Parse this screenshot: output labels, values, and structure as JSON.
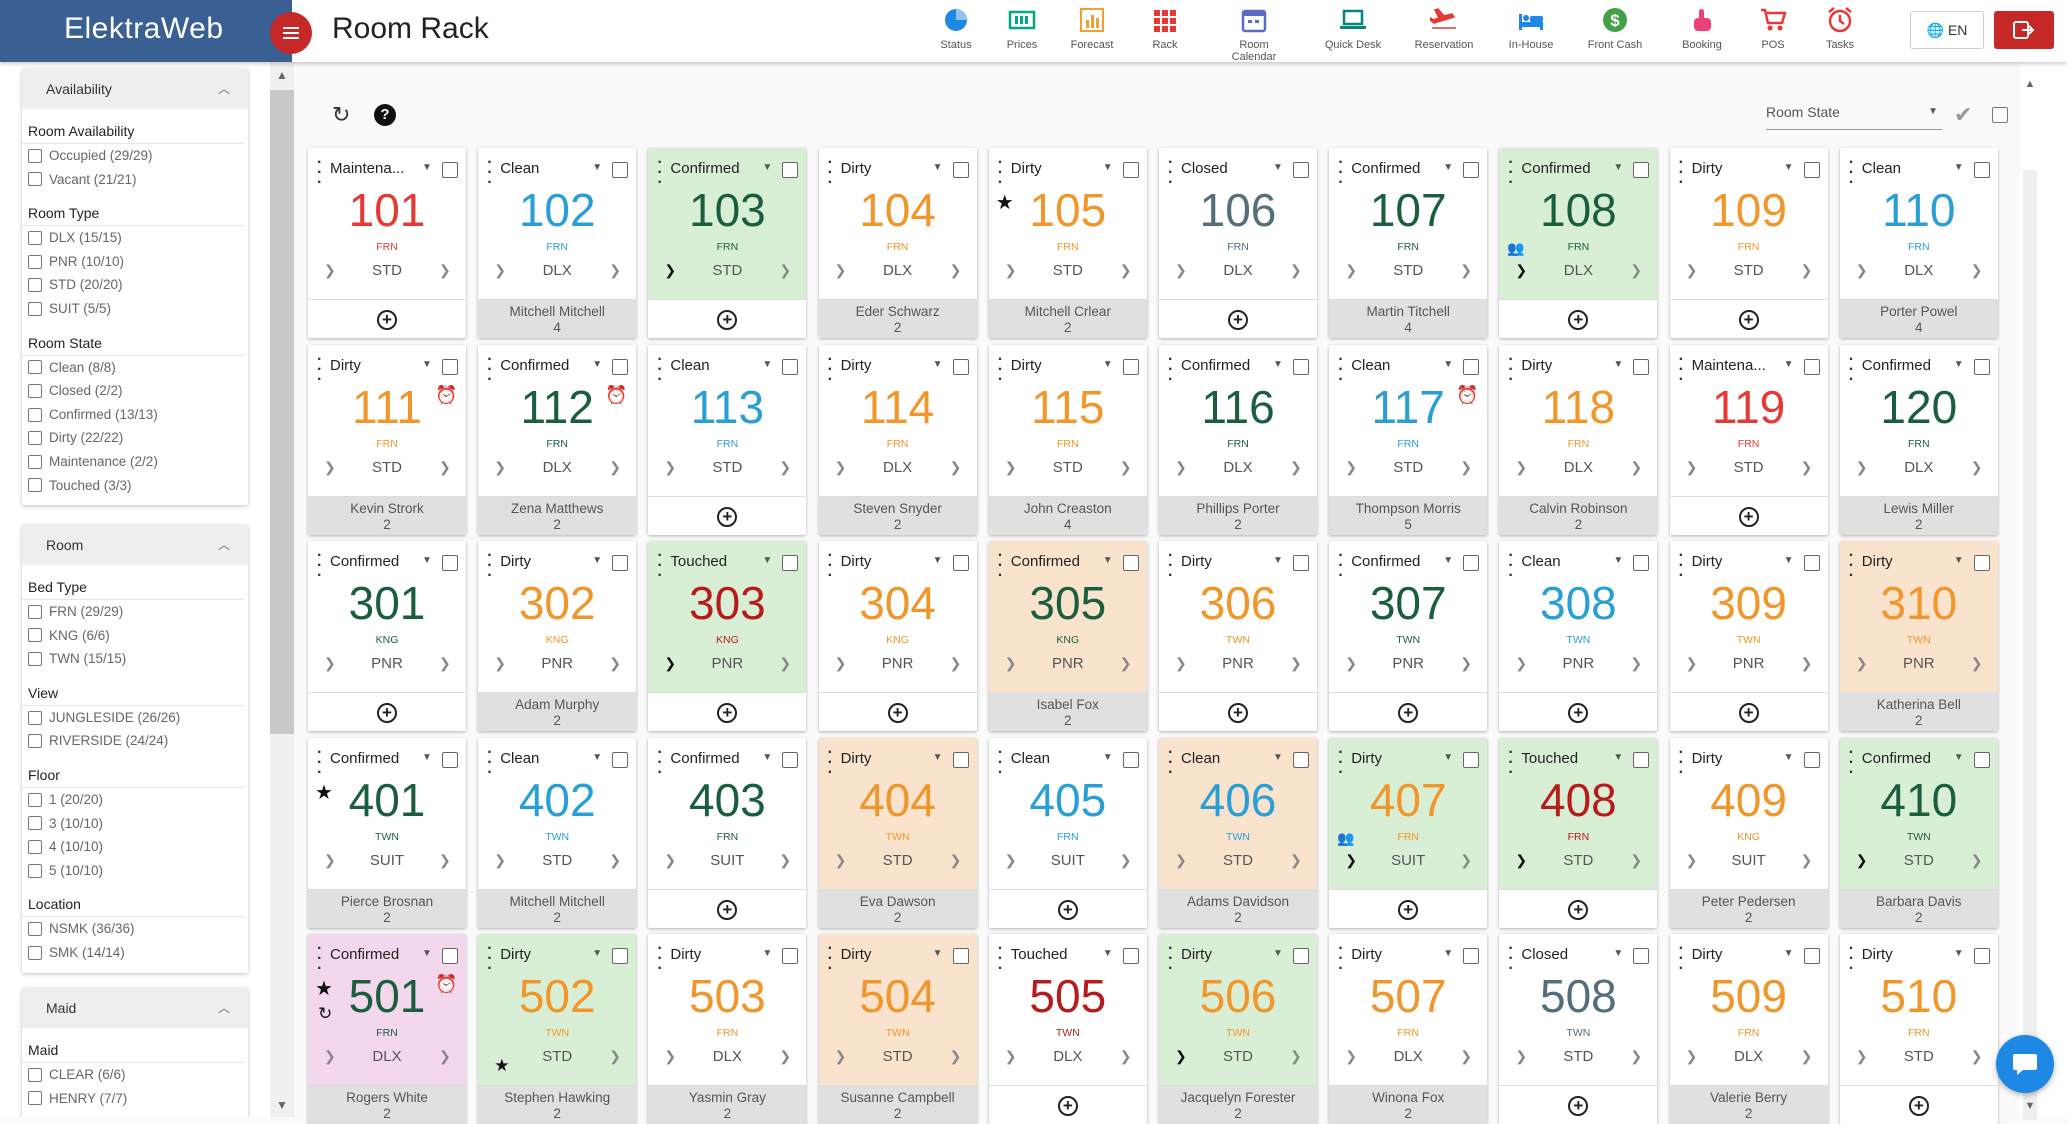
{
  "app": {
    "brand": "ElektraWeb",
    "page_title": "Room Rack",
    "language": "EN"
  },
  "toolbar": [
    {
      "label": "Status",
      "icon": "pie-icon",
      "color": "#1e88e5"
    },
    {
      "label": "Prices",
      "icon": "prices-icon",
      "color": "#00a884"
    },
    {
      "label": "Forecast",
      "icon": "chart-icon",
      "color": "#f0a030"
    },
    {
      "label": "Rack",
      "icon": "grid-icon",
      "color": "#e53935"
    },
    {
      "label": "Room Calendar",
      "icon": "calendar-icon",
      "color": "#5c6bc0"
    },
    {
      "label": "Quick Desk",
      "icon": "laptop-icon",
      "color": "#00897b"
    },
    {
      "label": "Reservation",
      "icon": "plane-icon",
      "color": "#e53935"
    },
    {
      "label": "In-House",
      "icon": "bed-icon",
      "color": "#1e88e5"
    },
    {
      "label": "Front Cash",
      "icon": "dollar-icon",
      "color": "#43a047"
    },
    {
      "label": "Booking",
      "icon": "hand-icon",
      "color": "#ec407a"
    },
    {
      "label": "POS",
      "icon": "cart-icon",
      "color": "#e53935"
    },
    {
      "label": "Tasks",
      "icon": "alarm-icon",
      "color": "#e53935"
    }
  ],
  "filters": [
    {
      "title": "Availability",
      "sections": [
        {
          "title": "Room Availability",
          "items": [
            "Occupied (29/29)",
            "Vacant (21/21)"
          ]
        },
        {
          "title": "Room Type",
          "items": [
            "DLX (15/15)",
            "PNR (10/10)",
            "STD (20/20)",
            "SUIT (5/5)"
          ]
        },
        {
          "title": "Room State",
          "items": [
            "Clean (8/8)",
            "Closed (2/2)",
            "Confirmed (13/13)",
            "Dirty (22/22)",
            "Maintenance (2/2)",
            "Touched (3/3)"
          ]
        }
      ]
    },
    {
      "title": "Room",
      "sections": [
        {
          "title": "Bed Type",
          "items": [
            "FRN (29/29)",
            "KNG (6/6)",
            "TWN (15/15)"
          ]
        },
        {
          "title": "View",
          "items": [
            "JUNGLESIDE (26/26)",
            "RIVERSIDE (24/24)"
          ]
        },
        {
          "title": "Floor",
          "items": [
            "1 (20/20)",
            "3 (10/10)",
            "4 (10/10)",
            "5 (10/10)"
          ]
        },
        {
          "title": "Location",
          "items": [
            "NSMK (36/36)",
            "SMK (14/14)"
          ]
        }
      ]
    },
    {
      "title": "Maid",
      "sections": [
        {
          "title": "Maid",
          "items": [
            "CLEAR (6/6)",
            "HENRY (7/7)"
          ]
        }
      ]
    }
  ],
  "rack": {
    "room_state_label": "Room State"
  },
  "state_colors": {
    "Confirmed": "#1b5e3f",
    "Dirty": "#f0962a",
    "Clean": "#2a9fd6",
    "Closed": "#546e7a",
    "Touched": "#b71c1c",
    "Maintenance": "#e53935"
  },
  "rooms": [
    {
      "state": "Maintena...",
      "color": "Maintenance",
      "number": "101",
      "bed": "FRN",
      "type": "STD",
      "guest": "",
      "pax": "",
      "bg": "",
      "icons": []
    },
    {
      "state": "Clean",
      "color": "Clean",
      "number": "102",
      "bed": "FRN",
      "type": "DLX",
      "guest": "Mitchell Mitchell",
      "pax": "4",
      "bg": "",
      "icons": []
    },
    {
      "state": "Confirmed",
      "color": "Confirmed",
      "number": "103",
      "bed": "FRN",
      "type": "STD",
      "guest": "",
      "pax": "",
      "bg": "green",
      "icons": [
        "arrow"
      ]
    },
    {
      "state": "Dirty",
      "color": "Dirty",
      "number": "104",
      "bed": "FRN",
      "type": "DLX",
      "guest": "Eder Schwarz",
      "pax": "2",
      "bg": "",
      "icons": []
    },
    {
      "state": "Dirty",
      "color": "Dirty",
      "number": "105",
      "bed": "FRN",
      "type": "STD",
      "guest": "Mitchell Crlear",
      "pax": "2",
      "bg": "",
      "icons": [
        "star"
      ]
    },
    {
      "state": "Closed",
      "color": "Closed",
      "number": "106",
      "bed": "FRN",
      "type": "DLX",
      "guest": "",
      "pax": "",
      "bg": "",
      "icons": []
    },
    {
      "state": "Confirmed",
      "color": "Confirmed",
      "number": "107",
      "bed": "FRN",
      "type": "STD",
      "guest": "Martin Titchell",
      "pax": "4",
      "bg": "",
      "icons": []
    },
    {
      "state": "Confirmed",
      "color": "Confirmed",
      "number": "108",
      "bed": "FRN",
      "type": "DLX",
      "guest": "",
      "pax": "",
      "bg": "green",
      "icons": [
        "group",
        "arrow"
      ]
    },
    {
      "state": "Dirty",
      "color": "Dirty",
      "number": "109",
      "bed": "FRN",
      "type": "STD",
      "guest": "",
      "pax": "",
      "bg": "",
      "icons": []
    },
    {
      "state": "Clean",
      "color": "Clean",
      "number": "110",
      "bed": "FRN",
      "type": "DLX",
      "guest": "Porter Powel",
      "pax": "4",
      "bg": "",
      "icons": []
    },
    {
      "state": "Dirty",
      "color": "Dirty",
      "number": "111",
      "bed": "FRN",
      "type": "STD",
      "guest": "Kevin Strork",
      "pax": "2",
      "bg": "",
      "icons": [
        "clock"
      ]
    },
    {
      "state": "Confirmed",
      "color": "Confirmed",
      "number": "112",
      "bed": "FRN",
      "type": "DLX",
      "guest": "Zena Matthews",
      "pax": "2",
      "bg": "",
      "icons": [
        "clock"
      ]
    },
    {
      "state": "Clean",
      "color": "Clean",
      "number": "113",
      "bed": "FRN",
      "type": "STD",
      "guest": "",
      "pax": "",
      "bg": "",
      "icons": []
    },
    {
      "state": "Dirty",
      "color": "Dirty",
      "number": "114",
      "bed": "FRN",
      "type": "DLX",
      "guest": "Steven Snyder",
      "pax": "2",
      "bg": "",
      "icons": []
    },
    {
      "state": "Dirty",
      "color": "Dirty",
      "number": "115",
      "bed": "FRN",
      "type": "STD",
      "guest": "John Creaston",
      "pax": "4",
      "bg": "",
      "icons": []
    },
    {
      "state": "Confirmed",
      "color": "Confirmed",
      "number": "116",
      "bed": "FRN",
      "type": "DLX",
      "guest": "Phillips Porter",
      "pax": "2",
      "bg": "",
      "icons": []
    },
    {
      "state": "Clean",
      "color": "Clean",
      "number": "117",
      "bed": "FRN",
      "type": "STD",
      "guest": "Thompson Morris",
      "pax": "5",
      "bg": "",
      "icons": [
        "clock"
      ]
    },
    {
      "state": "Dirty",
      "color": "Dirty",
      "number": "118",
      "bed": "FRN",
      "type": "DLX",
      "guest": "Calvin Robinson",
      "pax": "2",
      "bg": "",
      "icons": []
    },
    {
      "state": "Maintena...",
      "color": "Maintenance",
      "number": "119",
      "bed": "FRN",
      "type": "STD",
      "guest": "",
      "pax": "",
      "bg": "",
      "icons": []
    },
    {
      "state": "Confirmed",
      "color": "Confirmed",
      "number": "120",
      "bed": "FRN",
      "type": "DLX",
      "guest": "Lewis Miller",
      "pax": "2",
      "bg": "",
      "icons": []
    },
    {
      "state": "Confirmed",
      "color": "Confirmed",
      "number": "301",
      "bed": "KNG",
      "type": "PNR",
      "guest": "",
      "pax": "",
      "bg": "",
      "icons": []
    },
    {
      "state": "Dirty",
      "color": "Dirty",
      "number": "302",
      "bed": "KNG",
      "type": "PNR",
      "guest": "Adam Murphy",
      "pax": "2",
      "bg": "",
      "icons": []
    },
    {
      "state": "Touched",
      "color": "Touched",
      "number": "303",
      "bed": "KNG",
      "type": "PNR",
      "guest": "",
      "pax": "",
      "bg": "green",
      "icons": [
        "arrow"
      ]
    },
    {
      "state": "Dirty",
      "color": "Dirty",
      "number": "304",
      "bed": "KNG",
      "type": "PNR",
      "guest": "",
      "pax": "",
      "bg": "",
      "icons": []
    },
    {
      "state": "Confirmed",
      "color": "Confirmed",
      "number": "305",
      "bed": "KNG",
      "type": "PNR",
      "guest": "Isabel Fox",
      "pax": "2",
      "bg": "orange",
      "icons": []
    },
    {
      "state": "Dirty",
      "color": "Dirty",
      "number": "306",
      "bed": "TWN",
      "type": "PNR",
      "guest": "",
      "pax": "",
      "bg": "",
      "icons": []
    },
    {
      "state": "Confirmed",
      "color": "Confirmed",
      "number": "307",
      "bed": "TWN",
      "type": "PNR",
      "guest": "",
      "pax": "",
      "bg": "",
      "icons": []
    },
    {
      "state": "Clean",
      "color": "Clean",
      "number": "308",
      "bed": "TWN",
      "type": "PNR",
      "guest": "",
      "pax": "",
      "bg": "",
      "icons": []
    },
    {
      "state": "Dirty",
      "color": "Dirty",
      "number": "309",
      "bed": "TWN",
      "type": "PNR",
      "guest": "",
      "pax": "",
      "bg": "",
      "icons": []
    },
    {
      "state": "Dirty",
      "color": "Dirty",
      "number": "310",
      "bed": "TWN",
      "type": "PNR",
      "guest": "Katherina Bell",
      "pax": "2",
      "bg": "orange",
      "icons": []
    },
    {
      "state": "Confirmed",
      "color": "Confirmed",
      "number": "401",
      "bed": "TWN",
      "type": "SUIT",
      "guest": "Pierce Brosnan",
      "pax": "2",
      "bg": "",
      "icons": [
        "star"
      ]
    },
    {
      "state": "Clean",
      "color": "Clean",
      "number": "402",
      "bed": "TWN",
      "type": "STD",
      "guest": "Mitchell Mitchell",
      "pax": "2",
      "bg": "",
      "icons": []
    },
    {
      "state": "Confirmed",
      "color": "Confirmed",
      "number": "403",
      "bed": "FRN",
      "type": "SUIT",
      "guest": "",
      "pax": "",
      "bg": "",
      "icons": []
    },
    {
      "state": "Dirty",
      "color": "Dirty",
      "number": "404",
      "bed": "TWN",
      "type": "STD",
      "guest": "Eva Dawson",
      "pax": "2",
      "bg": "orange",
      "icons": []
    },
    {
      "state": "Clean",
      "color": "Clean",
      "number": "405",
      "bed": "FRN",
      "type": "SUIT",
      "guest": "",
      "pax": "",
      "bg": "",
      "icons": []
    },
    {
      "state": "Clean",
      "color": "Clean",
      "number": "406",
      "bed": "TWN",
      "type": "STD",
      "guest": "Adams Davidson",
      "pax": "2",
      "bg": "orange",
      "icons": []
    },
    {
      "state": "Dirty",
      "color": "Dirty",
      "number": "407",
      "bed": "FRN",
      "type": "SUIT",
      "guest": "",
      "pax": "",
      "bg": "green",
      "icons": [
        "group",
        "arrow"
      ]
    },
    {
      "state": "Touched",
      "color": "Touched",
      "number": "408",
      "bed": "FRN",
      "type": "STD",
      "guest": "",
      "pax": "",
      "bg": "green",
      "icons": [
        "arrow"
      ]
    },
    {
      "state": "Dirty",
      "color": "Dirty",
      "number": "409",
      "bed": "KNG",
      "type": "SUIT",
      "guest": "Peter Pedersen",
      "pax": "2",
      "bg": "",
      "icons": []
    },
    {
      "state": "Confirmed",
      "color": "Confirmed",
      "number": "410",
      "bed": "TWN",
      "type": "STD",
      "guest": "Barbara Davis",
      "pax": "2",
      "bg": "green",
      "icons": [
        "arrow"
      ]
    },
    {
      "state": "Confirmed",
      "color": "Confirmed",
      "number": "501",
      "bed": "FRN",
      "type": "DLX",
      "guest": "Rogers White",
      "pax": "2",
      "bg": "pink",
      "icons": [
        "star",
        "clock",
        "clock2"
      ]
    },
    {
      "state": "Dirty",
      "color": "Dirty",
      "number": "502",
      "bed": "TWN",
      "type": "STD",
      "guest": "Stephen Hawking",
      "pax": "2",
      "bg": "green",
      "icons": [
        "star2"
      ]
    },
    {
      "state": "Dirty",
      "color": "Dirty",
      "number": "503",
      "bed": "FRN",
      "type": "DLX",
      "guest": "Yasmin Gray",
      "pax": "2",
      "bg": "",
      "icons": []
    },
    {
      "state": "Dirty",
      "color": "Dirty",
      "number": "504",
      "bed": "TWN",
      "type": "STD",
      "guest": "Susanne Campbell",
      "pax": "2",
      "bg": "orange",
      "icons": []
    },
    {
      "state": "Touched",
      "color": "Touched",
      "number": "505",
      "bed": "TWN",
      "type": "DLX",
      "guest": "",
      "pax": "",
      "bg": "",
      "icons": []
    },
    {
      "state": "Dirty",
      "color": "Dirty",
      "number": "506",
      "bed": "TWN",
      "type": "STD",
      "guest": "Jacquelyn Forester",
      "pax": "2",
      "bg": "green",
      "icons": [
        "arrow"
      ]
    },
    {
      "state": "Dirty",
      "color": "Dirty",
      "number": "507",
      "bed": "FRN",
      "type": "DLX",
      "guest": "Winona Fox",
      "pax": "2",
      "bg": "",
      "icons": []
    },
    {
      "state": "Closed",
      "color": "Closed",
      "number": "508",
      "bed": "TWN",
      "type": "STD",
      "guest": "",
      "pax": "",
      "bg": "",
      "icons": []
    },
    {
      "state": "Dirty",
      "color": "Dirty",
      "number": "509",
      "bed": "FRN",
      "type": "DLX",
      "guest": "Valerie Berry",
      "pax": "2",
      "bg": "",
      "icons": []
    },
    {
      "state": "Dirty",
      "color": "Dirty",
      "number": "510",
      "bed": "FRN",
      "type": "STD",
      "guest": "",
      "pax": "",
      "bg": "",
      "icons": []
    }
  ]
}
